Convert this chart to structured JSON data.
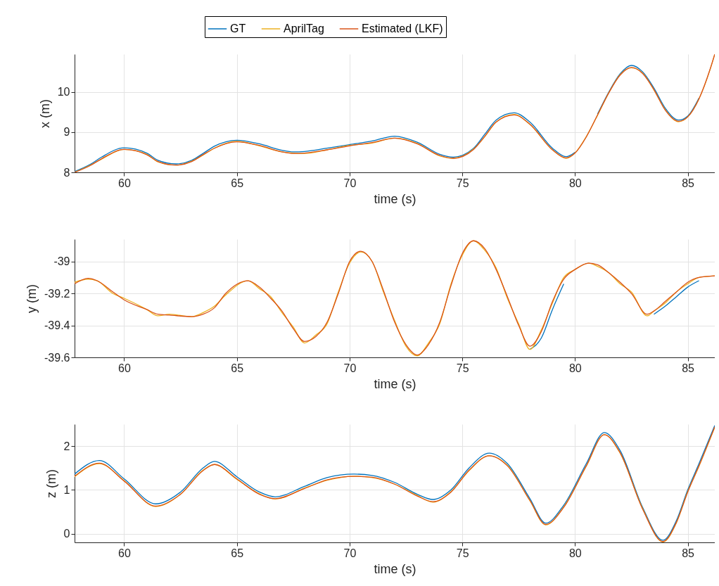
{
  "chart_data": [
    {
      "type": "line",
      "xlabel": "time (s)",
      "ylabel": "x (m)",
      "xlim": [
        57.8,
        86.2
      ],
      "ylim": [
        8,
        10.94
      ],
      "xticks": [
        60,
        65,
        70,
        75,
        80,
        85
      ],
      "yticks": [
        8,
        9,
        10
      ],
      "grid": true,
      "legend": "top",
      "line_style": "solid",
      "x": [
        57.8,
        58.5,
        59,
        60,
        61,
        61.5,
        62.3,
        63,
        63.5,
        64,
        65,
        66,
        67,
        67.5,
        68,
        69,
        70,
        71,
        72,
        73,
        74,
        74.6,
        75.5,
        76,
        76.5,
        77.3,
        78,
        79,
        79.6,
        80,
        80.5,
        81,
        81.5,
        82,
        82.5,
        83,
        83.5,
        84,
        84.6,
        85,
        85.5,
        86,
        86.2
      ],
      "series": [
        {
          "name": "GT",
          "color": "#0072bd",
          "values": [
            8.02,
            8.2,
            8.38,
            8.61,
            8.48,
            8.3,
            8.21,
            8.3,
            8.47,
            8.65,
            8.8,
            8.71,
            8.55,
            8.51,
            8.52,
            8.6,
            8.69,
            8.78,
            8.9,
            8.75,
            8.45,
            8.38,
            8.6,
            8.95,
            9.3,
            9.48,
            9.25,
            8.6,
            8.39,
            8.5,
            null,
            9.45,
            10.0,
            10.45,
            10.66,
            10.5,
            10.1,
            9.6,
            9.3,
            9.4,
            9.85,
            null,
            null
          ]
        },
        {
          "name": "AprilTag",
          "color": "#edb120",
          "values": [
            8.0,
            8.18,
            8.33,
            8.57,
            8.45,
            8.26,
            8.18,
            8.28,
            8.43,
            8.6,
            8.77,
            8.66,
            8.51,
            8.48,
            8.47,
            8.56,
            8.67,
            8.73,
            8.85,
            8.72,
            8.41,
            8.35,
            8.58,
            8.89,
            9.25,
            9.44,
            9.19,
            8.56,
            8.35,
            8.48,
            8.89,
            9.42,
            9.98,
            10.43,
            10.6,
            10.47,
            10.05,
            9.56,
            9.26,
            9.38,
            9.83,
            10.57,
            10.94
          ]
        },
        {
          "name": "Estimated (LKF)",
          "color": "#d95319",
          "values": [
            8.0,
            8.17,
            8.34,
            8.57,
            8.44,
            8.27,
            8.18,
            8.27,
            8.44,
            8.6,
            8.76,
            8.67,
            8.51,
            8.47,
            8.48,
            8.56,
            8.66,
            8.74,
            8.85,
            8.71,
            8.42,
            8.35,
            8.57,
            8.9,
            9.25,
            9.43,
            9.2,
            8.56,
            8.36,
            8.48,
            8.88,
            9.43,
            9.98,
            10.42,
            10.61,
            10.46,
            10.06,
            9.55,
            9.27,
            9.38,
            9.83,
            10.58,
            10.94
          ]
        }
      ]
    },
    {
      "type": "line",
      "xlabel": "time (s)",
      "ylabel": "y (m)",
      "xlim": [
        57.8,
        86.2
      ],
      "ylim": [
        -39.6,
        -38.86
      ],
      "xticks": [
        60,
        65,
        70,
        75,
        80,
        85
      ],
      "yticks": [
        {
          "value": -39.6,
          "label": "-39.6"
        },
        {
          "value": -39.4,
          "label": "-39.4"
        },
        {
          "value": -39.2,
          "label": "-39.2"
        },
        {
          "value": -39,
          "label": "-39"
        }
      ],
      "grid": true,
      "line_style": "solid",
      "x": [
        57.8,
        58.4,
        58.8,
        59.5,
        60,
        61,
        61.5,
        62,
        63,
        63.5,
        64,
        64.5,
        65.5,
        66,
        66.5,
        67,
        67.5,
        68,
        68.5,
        69,
        69.5,
        70,
        70.5,
        71,
        71.5,
        72,
        72.5,
        73,
        73.5,
        74,
        74.5,
        75,
        75.5,
        76,
        76.5,
        77,
        77.5,
        78,
        78.5,
        79,
        79.5,
        80,
        80.6,
        81,
        81.5,
        82,
        82.5,
        83.2,
        83.5,
        84,
        84.5,
        85,
        85.5,
        86.2
      ],
      "series": [
        {
          "color": "#0072bd",
          "values": [
            null,
            null,
            null,
            null,
            null,
            null,
            null,
            null,
            null,
            null,
            null,
            null,
            null,
            null,
            null,
            null,
            null,
            null,
            null,
            null,
            null,
            null,
            null,
            null,
            null,
            null,
            null,
            null,
            null,
            null,
            null,
            null,
            null,
            null,
            null,
            null,
            null,
            -39.55,
            -39.48,
            -39.3,
            -39.14,
            null,
            null,
            null,
            null,
            null,
            null,
            null,
            -39.33,
            -39.28,
            -39.22,
            -39.16,
            -39.12,
            null
          ]
        },
        {
          "color": "#edb120",
          "values": [
            -39.13,
            -39.11,
            -39.12,
            -39.2,
            -39.23,
            -39.3,
            -39.34,
            -39.33,
            -39.345,
            -39.32,
            -39.28,
            -39.21,
            -39.12,
            -39.17,
            -39.22,
            -39.32,
            -39.41,
            -39.51,
            -39.46,
            -39.39,
            -39.19,
            -39.01,
            -38.94,
            -39.0,
            -39.19,
            -39.37,
            -39.53,
            -39.59,
            -39.51,
            -39.39,
            -39.14,
            -38.96,
            -38.87,
            -38.93,
            -39.04,
            -39.23,
            -39.39,
            -39.55,
            -39.43,
            -39.26,
            -39.1,
            -39.05,
            -39.01,
            -39.03,
            -39.07,
            -39.14,
            -39.19,
            -39.34,
            -39.31,
            -39.26,
            -39.19,
            -39.14,
            -39.1,
            -39.09
          ]
        },
        {
          "color": "#d95319",
          "values": [
            -39.14,
            -39.105,
            -39.12,
            -39.19,
            -39.24,
            -39.3,
            -39.33,
            -39.335,
            -39.345,
            -39.33,
            -39.29,
            -39.2,
            -39.12,
            -39.16,
            -39.23,
            -39.31,
            -39.42,
            -39.5,
            -39.47,
            -39.38,
            -39.2,
            -39.0,
            -38.935,
            -39.0,
            -39.18,
            -39.38,
            -39.52,
            -39.585,
            -39.52,
            -39.38,
            -39.15,
            -38.95,
            -38.87,
            -38.92,
            -39.05,
            -39.22,
            -39.4,
            -39.53,
            -39.44,
            -39.25,
            -39.11,
            -39.05,
            -39.01,
            -39.02,
            -39.07,
            -39.13,
            -39.2,
            -39.33,
            -39.31,
            -39.25,
            -39.19,
            -39.13,
            -39.1,
            -39.09
          ]
        }
      ]
    },
    {
      "type": "line",
      "xlabel": "time (s)",
      "ylabel": "z (m)",
      "xlim": [
        57.8,
        86.2
      ],
      "ylim": [
        -0.2,
        2.5
      ],
      "xticks": [
        60,
        65,
        70,
        75,
        80,
        85
      ],
      "yticks": [
        0,
        1,
        2
      ],
      "grid": true,
      "line_style": "solid",
      "x": [
        57.8,
        58.9,
        60,
        61.4,
        62.5,
        63.5,
        64,
        65,
        66,
        66.7,
        68,
        69,
        70.2,
        71,
        72,
        73,
        73.7,
        74.5,
        75.3,
        76.2,
        77,
        78,
        78.7,
        79.5,
        80.5,
        81.3,
        82,
        83,
        83.9,
        84.5,
        85,
        85.5,
        86.2
      ],
      "series": [
        {
          "color": "#0072bd",
          "values": [
            1.36,
            1.67,
            1.25,
            0.68,
            0.95,
            1.5,
            1.65,
            1.3,
            0.95,
            0.84,
            1.08,
            1.28,
            1.36,
            1.33,
            1.17,
            0.9,
            0.78,
            1.0,
            1.5,
            1.84,
            1.6,
            0.8,
            0.24,
            0.65,
            1.6,
            2.31,
            1.9,
            0.6,
            -0.15,
            0.3,
            1.0,
            1.6,
            2.47
          ]
        },
        {
          "color": "#edb120",
          "values": [
            1.3,
            1.6,
            1.21,
            0.62,
            0.9,
            1.45,
            1.58,
            1.24,
            0.91,
            0.79,
            1.04,
            1.22,
            1.31,
            1.28,
            1.13,
            0.87,
            0.72,
            0.96,
            1.44,
            1.78,
            1.56,
            0.75,
            0.2,
            0.61,
            1.54,
            2.26,
            1.84,
            0.57,
            -0.19,
            0.25,
            0.96,
            1.54,
            2.43
          ]
        },
        {
          "color": "#d95319",
          "values": [
            1.31,
            1.61,
            1.2,
            0.63,
            0.9,
            1.44,
            1.58,
            1.25,
            0.9,
            0.8,
            1.03,
            1.23,
            1.31,
            1.29,
            1.13,
            0.86,
            0.73,
            0.95,
            1.45,
            1.78,
            1.55,
            0.76,
            0.21,
            0.6,
            1.55,
            2.26,
            1.85,
            0.56,
            -0.18,
            0.26,
            0.95,
            1.55,
            2.44
          ]
        }
      ]
    }
  ]
}
